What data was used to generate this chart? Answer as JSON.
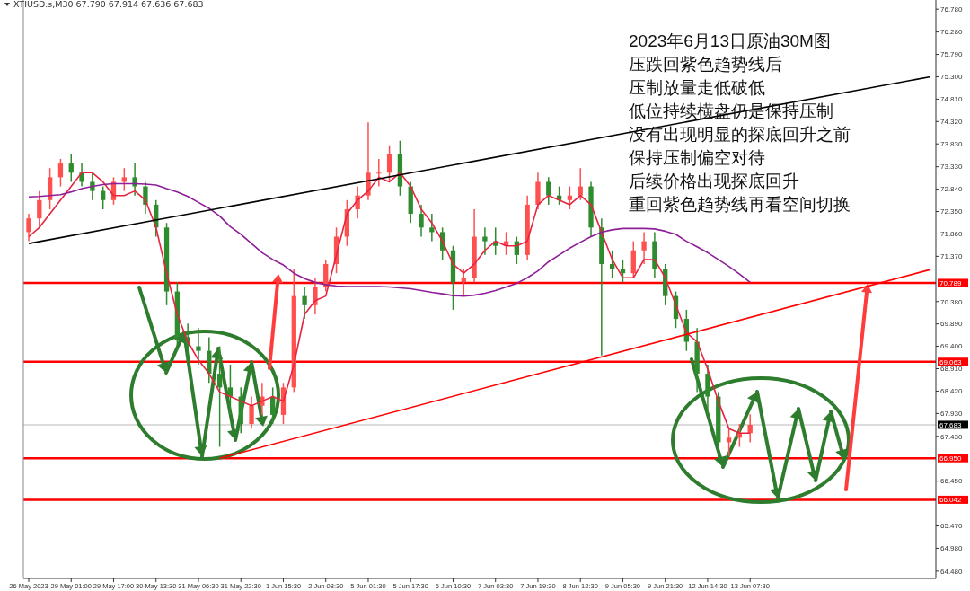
{
  "chart_data": {
    "type": "candlestick",
    "title": "XTIUSD.s,M30  67.790 67.914 67.636 67.683",
    "categories": [
      "26 May 2023",
      null,
      null,
      null,
      "29 May 01:00",
      null,
      null,
      null,
      "29 May 17:00",
      null,
      null,
      null,
      "30 May 13:30",
      null,
      null,
      null,
      "31 May 06:30",
      null,
      null,
      null,
      "31 May 22:30",
      null,
      null,
      null,
      "1 Jun 15:30",
      null,
      null,
      null,
      "2 Jun 08:30",
      null,
      null,
      null,
      "5 Jun 01:30",
      null,
      null,
      null,
      "5 Jun 17:30",
      null,
      null,
      null,
      "6 Jun 10:30",
      null,
      null,
      null,
      "7 Jun 03:30",
      null,
      null,
      null,
      "7 Jun 19:30",
      null,
      null,
      null,
      "8 Jun 12:30",
      null,
      null,
      null,
      "9 Jun 05:30",
      null,
      null,
      null,
      "9 Jun 21:30",
      null,
      null,
      null,
      "12 Jun 14:30",
      null,
      null,
      null,
      "13 Jun 07:30",
      null,
      null,
      null,
      null,
      null,
      null,
      null,
      null,
      null,
      null,
      null,
      null,
      null,
      null,
      null,
      null,
      null
    ],
    "ohlc": [
      [
        71.9,
        72.3,
        71.7,
        72.2
      ],
      [
        72.2,
        72.8,
        72.0,
        72.6
      ],
      [
        72.6,
        73.3,
        72.4,
        73.1
      ],
      [
        73.1,
        73.5,
        72.9,
        73.4
      ],
      [
        73.4,
        73.6,
        73.0,
        73.2
      ],
      [
        73.2,
        73.4,
        72.9,
        73.0
      ],
      [
        73.0,
        73.2,
        72.6,
        72.8
      ],
      [
        72.8,
        72.9,
        72.4,
        72.6
      ],
      [
        72.6,
        73.1,
        72.5,
        73.0
      ],
      [
        73.0,
        73.3,
        72.8,
        73.1
      ],
      [
        73.1,
        73.4,
        72.7,
        72.9
      ],
      [
        72.9,
        73.0,
        72.3,
        72.5
      ],
      [
        72.5,
        72.6,
        71.8,
        72.0
      ],
      [
        72.0,
        72.1,
        70.3,
        70.6
      ],
      [
        70.6,
        70.8,
        69.3,
        69.6
      ],
      [
        69.6,
        69.9,
        69.1,
        69.4
      ],
      [
        69.4,
        69.8,
        69.0,
        69.3
      ],
      [
        69.3,
        69.6,
        68.6,
        68.8
      ],
      [
        68.8,
        69.4,
        67.2,
        68.5
      ],
      [
        68.5,
        69.0,
        67.9,
        68.3
      ],
      [
        68.3,
        68.5,
        67.5,
        67.7
      ],
      [
        67.7,
        68.3,
        67.6,
        68.1
      ],
      [
        68.1,
        68.6,
        67.9,
        68.3
      ],
      [
        68.3,
        68.5,
        67.7,
        67.9
      ],
      [
        67.9,
        68.6,
        67.7,
        68.5
      ],
      [
        68.5,
        71.1,
        68.4,
        70.5
      ],
      [
        70.5,
        70.7,
        70.0,
        70.3
      ],
      [
        70.3,
        70.9,
        70.1,
        70.7
      ],
      [
        70.7,
        71.3,
        70.6,
        71.2
      ],
      [
        71.2,
        72.0,
        71.0,
        71.8
      ],
      [
        71.8,
        72.6,
        71.6,
        72.4
      ],
      [
        72.4,
        72.9,
        72.2,
        72.7
      ],
      [
        72.7,
        74.3,
        72.6,
        73.2
      ],
      [
        73.2,
        73.5,
        72.9,
        73.2
      ],
      [
        73.2,
        73.8,
        73.0,
        73.6
      ],
      [
        73.6,
        73.9,
        72.7,
        72.9
      ],
      [
        72.9,
        73.0,
        72.1,
        72.3
      ],
      [
        72.3,
        72.5,
        71.8,
        72.0
      ],
      [
        72.0,
        72.3,
        71.7,
        71.9
      ],
      [
        71.9,
        72.0,
        71.3,
        71.5
      ],
      [
        71.5,
        71.6,
        70.2,
        70.8
      ],
      [
        70.8,
        71.1,
        70.5,
        70.9
      ],
      [
        70.9,
        72.4,
        70.8,
        71.8
      ],
      [
        71.8,
        72.0,
        71.4,
        71.7
      ],
      [
        71.7,
        72.0,
        71.4,
        71.6
      ],
      [
        71.6,
        71.9,
        71.4,
        71.7
      ],
      [
        71.7,
        71.8,
        71.2,
        71.4
      ],
      [
        71.4,
        72.7,
        71.3,
        72.5
      ],
      [
        72.5,
        73.2,
        72.4,
        73.0
      ],
      [
        73.0,
        73.1,
        72.5,
        72.7
      ],
      [
        72.7,
        72.9,
        72.5,
        72.6
      ],
      [
        72.6,
        72.9,
        72.4,
        72.7
      ],
      [
        72.7,
        73.3,
        72.6,
        72.9
      ],
      [
        72.9,
        73.0,
        71.8,
        72.0
      ],
      [
        72.0,
        72.2,
        69.2,
        71.2
      ],
      [
        71.2,
        71.5,
        70.9,
        71.1
      ],
      [
        71.1,
        71.3,
        70.8,
        71.0
      ],
      [
        71.0,
        71.7,
        70.9,
        71.5
      ],
      [
        71.5,
        71.9,
        71.2,
        71.7
      ],
      [
        71.7,
        71.9,
        70.9,
        71.1
      ],
      [
        71.1,
        71.2,
        70.3,
        70.5
      ],
      [
        70.5,
        70.6,
        69.8,
        70.0
      ],
      [
        70.0,
        70.2,
        69.3,
        69.5
      ],
      [
        69.5,
        69.8,
        68.4,
        68.8
      ],
      [
        68.8,
        69.0,
        67.9,
        68.3
      ],
      [
        68.3,
        68.4,
        66.95,
        67.3
      ],
      [
        67.3,
        67.6,
        67.0,
        67.4
      ],
      [
        67.4,
        67.7,
        67.2,
        67.5
      ],
      [
        67.5,
        67.914,
        67.3,
        67.683
      ],
      null,
      null,
      null,
      null,
      null,
      null,
      null,
      null,
      null,
      null,
      null,
      null,
      null,
      null,
      null,
      null,
      null
    ],
    "series": [
      {
        "type": "line",
        "color": "#e8233f",
        "values": [
          71.8,
          72.0,
          72.3,
          72.6,
          72.9,
          73.2,
          73.2,
          73.0,
          72.7,
          72.7,
          72.8,
          72.6,
          72.0,
          71.0,
          70.1,
          69.5,
          69.1,
          68.8,
          68.4,
          68.3,
          68.2,
          68.1,
          68.2,
          68.3,
          68.2,
          69.0,
          70.1,
          70.4,
          70.5,
          71.4,
          72.3,
          72.6,
          72.8,
          73.1,
          73.0,
          73.2,
          72.9,
          72.4,
          72.1,
          71.7,
          71.2,
          71.0,
          71.2,
          71.5,
          71.7,
          71.6,
          71.6,
          71.7,
          72.5,
          72.7,
          72.6,
          72.5,
          72.7,
          72.5,
          71.9,
          71.3,
          70.9,
          70.9,
          71.3,
          71.3,
          70.9,
          70.3,
          69.7,
          69.5,
          68.9,
          68.2,
          67.6,
          67.5,
          67.5,
          null,
          null,
          null,
          null,
          null,
          null,
          null,
          null,
          null,
          null,
          null,
          null,
          null,
          null,
          null,
          null,
          null
        ]
      },
      {
        "type": "line",
        "color": "#8e1e98",
        "values": [
          72.67,
          72.68,
          72.7,
          72.72,
          72.78,
          72.85,
          72.9,
          72.94,
          72.96,
          72.96,
          72.96,
          72.95,
          72.93,
          72.85,
          72.78,
          72.68,
          72.55,
          72.42,
          72.25,
          72.02,
          71.85,
          71.65,
          71.45,
          71.3,
          71.18,
          71.0,
          70.88,
          70.8,
          70.75,
          70.72,
          70.71,
          70.71,
          70.71,
          70.71,
          70.7,
          70.68,
          70.66,
          70.62,
          70.58,
          70.55,
          70.51,
          70.5,
          70.52,
          70.56,
          70.62,
          70.7,
          70.78,
          70.9,
          71.05,
          71.25,
          71.4,
          71.55,
          71.68,
          71.8,
          71.9,
          71.95,
          71.98,
          71.98,
          71.98,
          71.97,
          71.92,
          71.85,
          71.7,
          71.58,
          71.45,
          71.3,
          71.15,
          70.98,
          70.8,
          null,
          null,
          null,
          null,
          null,
          null,
          null,
          null,
          null,
          null,
          null,
          null,
          null,
          null,
          null,
          null,
          null
        ]
      },
      {
        "type": "line",
        "color": "#000000",
        "values": [
          71.65,
          null,
          null,
          null,
          null,
          null,
          null,
          null,
          null,
          null,
          null,
          null,
          null,
          null,
          null,
          null,
          null,
          null,
          null,
          null,
          null,
          null,
          null,
          null,
          null,
          null,
          null,
          null,
          null,
          null,
          null,
          null,
          null,
          null,
          null,
          null,
          null,
          null,
          null,
          null,
          null,
          null,
          null,
          null,
          null,
          null,
          null,
          null,
          null,
          null,
          null,
          null,
          null,
          null,
          null,
          null,
          null,
          null,
          null,
          null,
          null,
          null,
          null,
          null,
          null,
          null,
          null,
          null,
          null,
          null,
          null,
          null,
          null,
          null,
          null,
          null,
          null,
          null,
          null,
          null,
          null,
          null,
          null,
          null,
          null,
          75.3
        ]
      },
      {
        "type": "line",
        "color": "#ff0000",
        "values": [
          null,
          null,
          null,
          null,
          null,
          null,
          null,
          null,
          null,
          null,
          null,
          null,
          null,
          null,
          null,
          null,
          null,
          null,
          66.95,
          null,
          null,
          null,
          null,
          null,
          null,
          null,
          null,
          null,
          null,
          null,
          null,
          null,
          null,
          null,
          null,
          null,
          null,
          null,
          null,
          null,
          null,
          null,
          null,
          null,
          null,
          null,
          null,
          null,
          null,
          null,
          null,
          null,
          null,
          null,
          null,
          null,
          null,
          null,
          null,
          null,
          null,
          null,
          null,
          null,
          null,
          null,
          null,
          null,
          null,
          null,
          null,
          null,
          null,
          null,
          null,
          null,
          null,
          null,
          null,
          null,
          null,
          null,
          null,
          null,
          null,
          71.08
        ]
      }
    ],
    "ylim": [
      64.32,
      76.98
    ],
    "yticks": [
      {
        "value": 76.78,
        "label": "76.780"
      },
      {
        "value": 76.28,
        "label": "76.280"
      },
      {
        "value": 75.79,
        "label": "75.790"
      },
      {
        "value": 75.3,
        "label": "75.300"
      },
      {
        "value": 74.81,
        "label": "74.810"
      },
      {
        "value": 74.32,
        "label": "74.320"
      },
      {
        "value": 73.83,
        "label": "73.830"
      },
      {
        "value": 73.33,
        "label": "73.330"
      },
      {
        "value": 72.84,
        "label": "72.840"
      },
      {
        "value": 72.35,
        "label": "72.350"
      },
      {
        "value": 71.86,
        "label": "71.860"
      },
      {
        "value": 71.37,
        "label": "71.370"
      },
      {
        "value": 70.38,
        "label": "70.380"
      },
      {
        "value": 69.89,
        "label": "69.890"
      },
      {
        "value": 69.4,
        "label": "69.400"
      },
      {
        "value": 68.91,
        "label": "68.910"
      },
      {
        "value": 68.42,
        "label": "68.420"
      },
      {
        "value": 67.93,
        "label": "67.930"
      },
      {
        "value": 67.43,
        "label": "67.430"
      },
      {
        "value": 66.45,
        "label": "66.450"
      },
      {
        "value": 65.47,
        "label": "65.470"
      },
      {
        "value": 64.98,
        "label": "64.980"
      },
      {
        "value": 64.48,
        "label": "64.480"
      }
    ],
    "ref_lines": [
      {
        "axis": "y",
        "value": 70.789,
        "label": "70.789",
        "color": "#ff0000"
      },
      {
        "axis": "y",
        "value": 69.063,
        "label": "69.063",
        "color": "#ff0000"
      },
      {
        "axis": "y",
        "value": 66.95,
        "label": "66.950",
        "color": "#ff0000"
      },
      {
        "axis": "y",
        "value": 66.042,
        "label": "66.042",
        "color": "#ff0000"
      },
      {
        "axis": "y",
        "value": 67.683,
        "label": "67.683",
        "color": "#d0d0d0"
      }
    ],
    "annotations": [
      "2023年6月13日原油30M图",
      "压跌回紫色趋势线后",
      "压制放量走低破低",
      "低位持续横盘仍是保持压制",
      "没有出现明显的探底回升之前",
      "保持压制偏空对待",
      "后续价格出现探底回升",
      "重回紫色趋势线再看空间切换"
    ]
  }
}
